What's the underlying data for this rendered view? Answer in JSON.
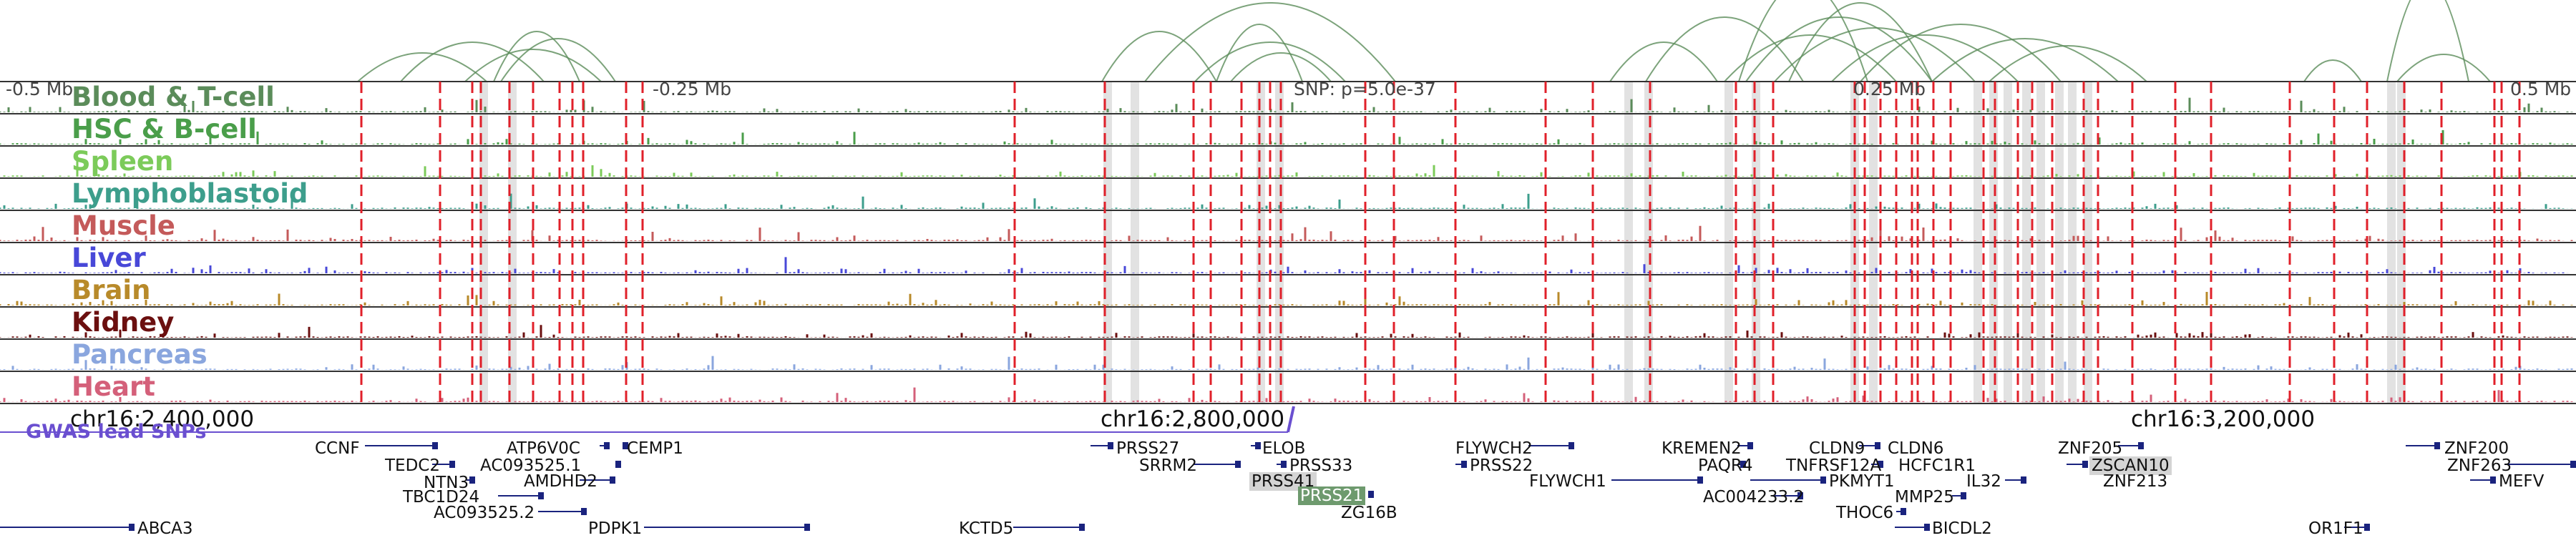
{
  "scale": {
    "left": "-0.5 Mb",
    "mid_left": "-0.25 Mb",
    "snp": "SNP: p=5.0e-37",
    "mid_right": "0.25 Mb",
    "right": "0.5 Mb"
  },
  "tracks": [
    {
      "name": "Blood & T-cell",
      "color": "#5b8c5a"
    },
    {
      "name": "HSC & B-cell",
      "color": "#4a9e4a"
    },
    {
      "name": "Spleen",
      "color": "#7ccb5a"
    },
    {
      "name": "Lymphoblastoid",
      "color": "#3d9e8c"
    },
    {
      "name": "Muscle",
      "color": "#c45a5a"
    },
    {
      "name": "Liver",
      "color": "#4848d8"
    },
    {
      "name": "Brain",
      "color": "#b88a2a"
    },
    {
      "name": "Kidney",
      "color": "#6b0f0f"
    },
    {
      "name": "Pancreas",
      "color": "#8aa6de"
    },
    {
      "name": "Heart",
      "color": "#d4607a"
    }
  ],
  "coordinates": [
    "chr16:2,400,000",
    "chr16:2,800,000",
    "chr16:3,200,000"
  ],
  "gwas_label": "GWAS lead SNPs",
  "genes": [
    {
      "name": "CCNF"
    },
    {
      "name": "TEDC2"
    },
    {
      "name": "NTN3"
    },
    {
      "name": "TBC1D24"
    },
    {
      "name": "AC093525.2"
    },
    {
      "name": "ATP6V0C"
    },
    {
      "name": "AC093525.1"
    },
    {
      "name": "AMDHD2"
    },
    {
      "name": "CEMP1"
    },
    {
      "name": "PDPK1"
    },
    {
      "name": "ABCA3"
    },
    {
      "name": "KCTD5"
    },
    {
      "name": "PRSS27"
    },
    {
      "name": "SRRM2"
    },
    {
      "name": "ELOB"
    },
    {
      "name": "PRSS33"
    },
    {
      "name": "PRSS41"
    },
    {
      "name": "PRSS21"
    },
    {
      "name": "ZG16B"
    },
    {
      "name": "FLYWCH2"
    },
    {
      "name": "PRSS22"
    },
    {
      "name": "FLYWCH1"
    },
    {
      "name": "KREMEN2"
    },
    {
      "name": "PAQR4"
    },
    {
      "name": "AC004233.2"
    },
    {
      "name": "CLDN9"
    },
    {
      "name": "CLDN6"
    },
    {
      "name": "TNFRSF12A"
    },
    {
      "name": "HCFC1R1"
    },
    {
      "name": "PKMYT1"
    },
    {
      "name": "IL32"
    },
    {
      "name": "MMP25"
    },
    {
      "name": "THOC6"
    },
    {
      "name": "BICDL2"
    },
    {
      "name": "ZNF205"
    },
    {
      "name": "ZSCAN10"
    },
    {
      "name": "ZNF213"
    },
    {
      "name": "ZNF200"
    },
    {
      "name": "ZNF263"
    },
    {
      "name": "MEFV"
    },
    {
      "name": "OR1F1"
    }
  ],
  "colors": {
    "snp_line": "#e0202a",
    "arc": "#5b8c5a",
    "gene": "#1a237e",
    "gwas": "#6a4fd0"
  }
}
